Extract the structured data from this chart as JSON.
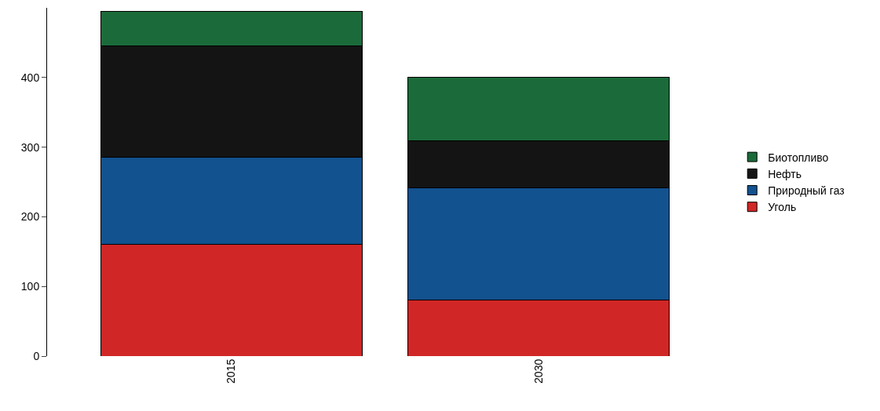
{
  "chart_data": {
    "type": "bar",
    "stacked": true,
    "categories": [
      "2015",
      "2030"
    ],
    "series": [
      {
        "name": "Уголь",
        "color": "#d02626",
        "values": [
          160,
          80
        ]
      },
      {
        "name": "Природный газ",
        "color": "#12528f",
        "values": [
          125,
          162
        ]
      },
      {
        "name": "Нефть",
        "color": "#141414",
        "values": [
          160,
          67
        ]
      },
      {
        "name": "Биотопливо",
        "color": "#1b6b3a",
        "values": [
          50,
          91
        ]
      }
    ],
    "ylim": [
      0,
      500
    ],
    "yticks": [
      0,
      100,
      200,
      300,
      400
    ],
    "grid": false,
    "legend": "right"
  }
}
